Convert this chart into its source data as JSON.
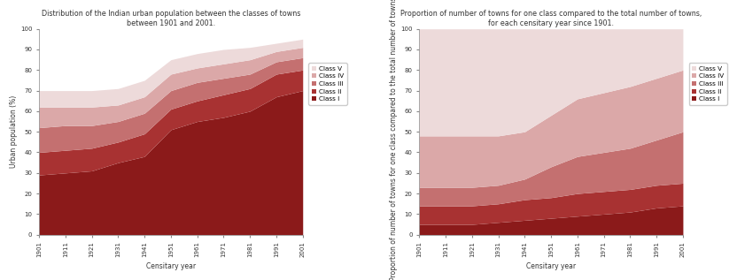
{
  "years": [
    1901,
    1911,
    1921,
    1931,
    1941,
    1951,
    1961,
    1971,
    1981,
    1991,
    2001
  ],
  "left_title": "Distribution of the Indian urban population between the classes of towns\nbetween 1901 and 2001.",
  "right_title": "Proportion of number of towns for one class compared to the total number of towns,\nfor each censitary year since 1901.",
  "left_xlabel": "Censitary year",
  "left_ylabel": "Urban population (%)",
  "right_xlabel": "Censitary year",
  "right_ylabel": "Proportion of number of towns for one class compared to the total number of towns (%)",
  "legend_labels": [
    "Class V",
    "Class IV",
    "Class III",
    "Class II",
    "Class I"
  ],
  "colors": [
    "#eddada",
    "#dba8a8",
    "#c47070",
    "#a83232",
    "#8b1a1a"
  ],
  "left_data": {
    "class1": [
      29,
      30,
      31,
      35,
      38,
      51,
      55,
      57,
      60,
      67,
      70
    ],
    "class2": [
      11,
      11,
      11,
      10,
      11,
      10,
      10,
      11,
      11,
      11,
      10
    ],
    "class3": [
      12,
      12,
      11,
      10,
      10,
      9,
      9,
      8,
      7,
      6,
      6
    ],
    "class4": [
      10,
      9,
      9,
      8,
      8,
      8,
      7,
      7,
      7,
      5,
      5
    ],
    "class5": [
      8,
      8,
      8,
      8,
      8,
      7,
      7,
      7,
      6,
      4,
      4
    ]
  },
  "right_data": {
    "class1": [
      5,
      5,
      5,
      6,
      7,
      8,
      9,
      10,
      11,
      13,
      14
    ],
    "class2": [
      9,
      9,
      9,
      9,
      10,
      10,
      11,
      11,
      11,
      11,
      11
    ],
    "class3": [
      9,
      9,
      9,
      9,
      10,
      15,
      18,
      19,
      20,
      22,
      25
    ],
    "class4": [
      25,
      25,
      25,
      24,
      23,
      25,
      28,
      29,
      30,
      30,
      30
    ],
    "class5": [
      52,
      52,
      52,
      52,
      50,
      42,
      34,
      31,
      28,
      24,
      20
    ]
  },
  "left_ylim": [
    0,
    100
  ],
  "right_ylim": [
    0,
    100
  ],
  "bg_color": "#ffffff",
  "font_size_title": 5.8,
  "font_size_tick": 5.0,
  "font_size_label": 5.5,
  "font_size_legend": 5.2
}
